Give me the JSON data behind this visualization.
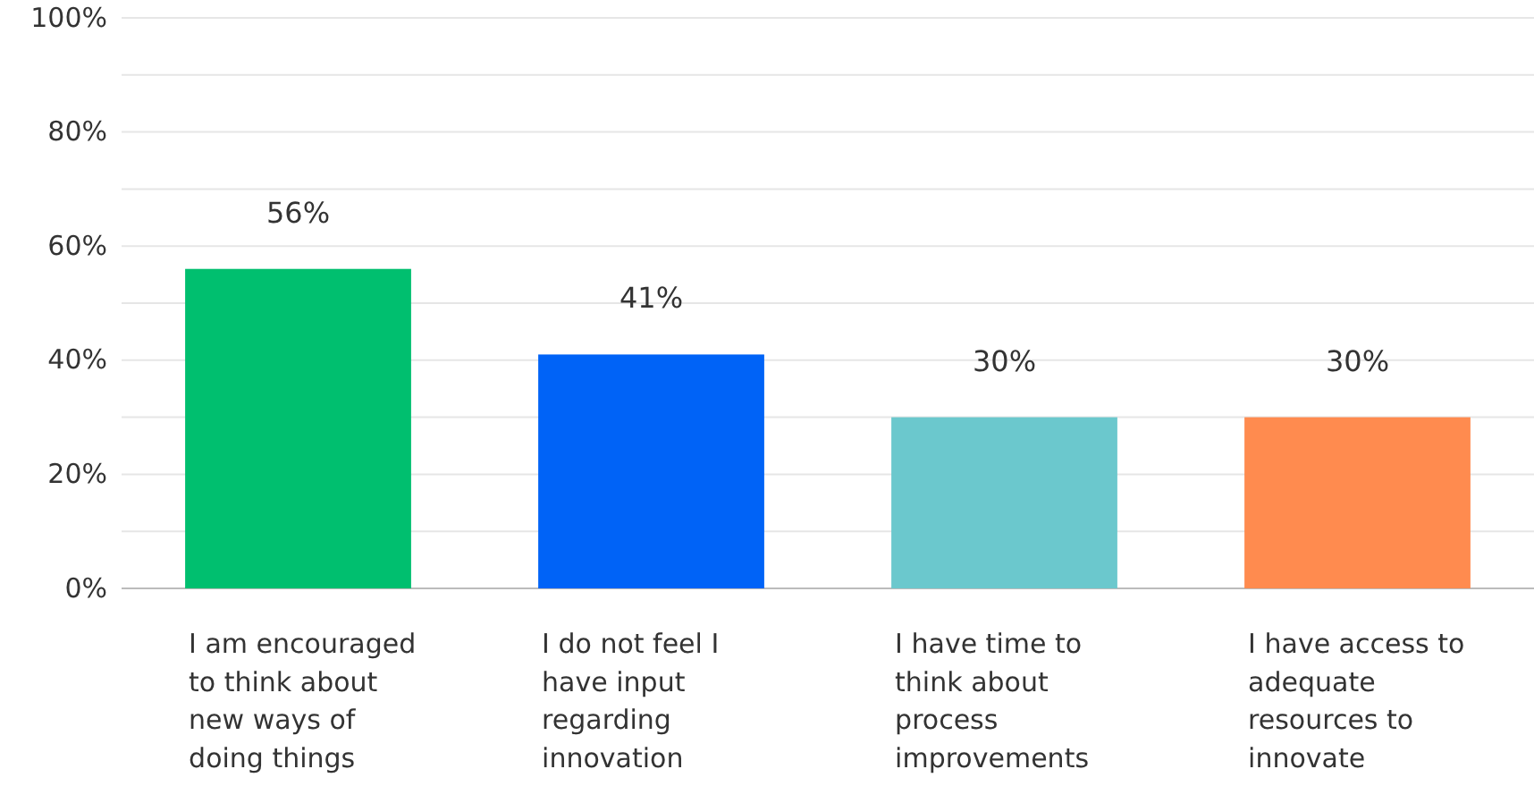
{
  "chart_data": {
    "type": "bar",
    "categories": [
      "I am encouraged to think about new ways of doing things",
      "I do not feel I have input regarding innovation",
      "I have time to think about process improvements",
      "I have access to adequate resources to innovate"
    ],
    "values": [
      56,
      41,
      30,
      30
    ],
    "colors": [
      "#00bf6f",
      "#0063f7",
      "#6bc8cd",
      "#ff8b4f"
    ],
    "value_labels": [
      "56%",
      "41%",
      "30%",
      "30%"
    ],
    "ylim": [
      0,
      100
    ],
    "yticks": [
      {
        "value": 0,
        "label": "0%"
      },
      {
        "value": 10,
        "label": null
      },
      {
        "value": 20,
        "label": "20%"
      },
      {
        "value": 30,
        "label": null
      },
      {
        "value": 40,
        "label": "40%"
      },
      {
        "value": 50,
        "label": null
      },
      {
        "value": 60,
        "label": "60%"
      },
      {
        "value": 70,
        "label": null
      },
      {
        "value": 80,
        "label": "80%"
      },
      {
        "value": 90,
        "label": null
      },
      {
        "value": 100,
        "label": "100%"
      }
    ],
    "grid": true
  }
}
